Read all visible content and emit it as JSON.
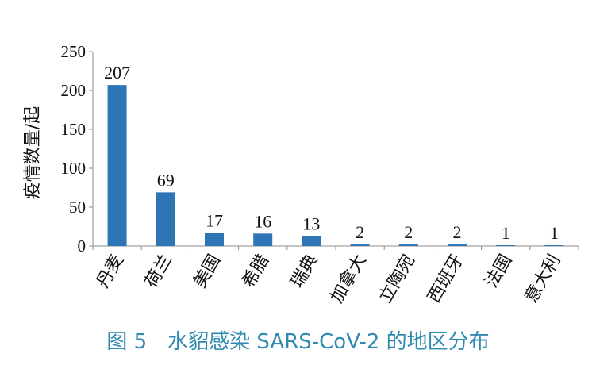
{
  "figure_caption": "图 5　水貂感染 SARS-CoV-2 的地区分布",
  "chart_data": {
    "type": "bar",
    "title": "",
    "xlabel": "",
    "ylabel": "疫情数量/起",
    "categories": [
      "丹麦",
      "荷兰",
      "美国",
      "希腊",
      "瑞典",
      "加拿大",
      "立陶宛",
      "西班牙",
      "法国",
      "意大利"
    ],
    "values": [
      207,
      69,
      17,
      16,
      13,
      2,
      2,
      2,
      1,
      1
    ],
    "data_labels": [
      "207",
      "69",
      "17",
      "16",
      "13",
      "2",
      "2",
      "2",
      "1",
      "1"
    ],
    "ylim": [
      0,
      250
    ],
    "yticks": [
      0,
      50,
      100,
      150,
      200,
      250
    ],
    "ytick_labels": [
      "0",
      "50",
      "100",
      "150",
      "200",
      "250"
    ],
    "grid": false,
    "bar_color": "#2e75b6"
  },
  "colors": {
    "caption": "#2e8ab0",
    "bar": "#2e75b6",
    "axis": "#8c8c8c"
  }
}
